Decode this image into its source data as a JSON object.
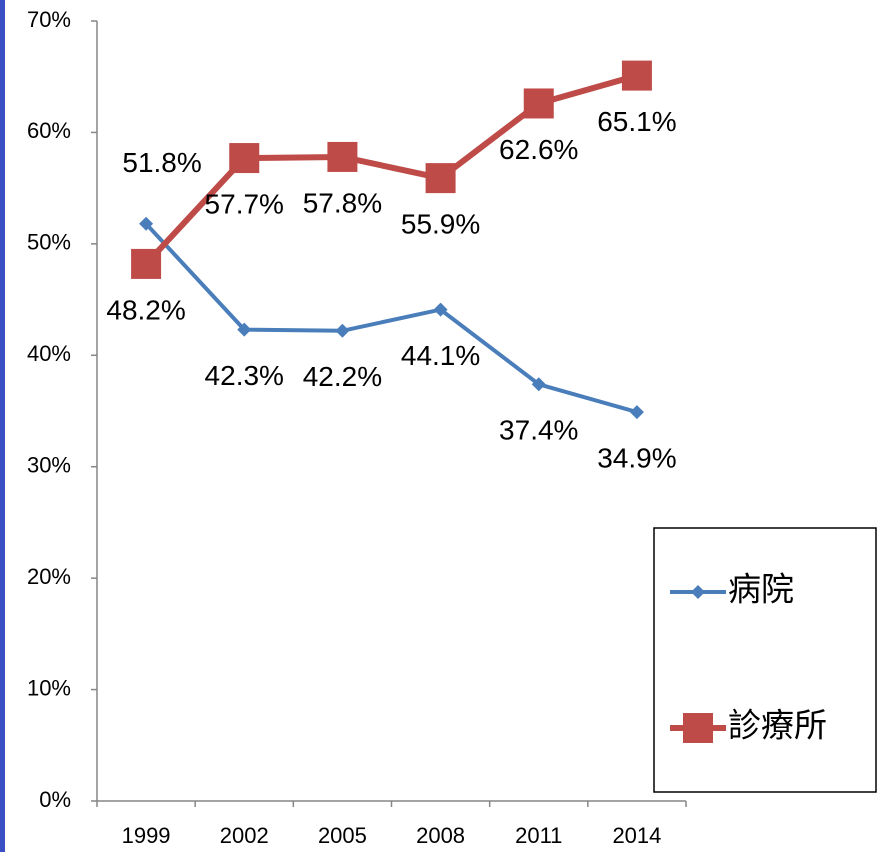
{
  "chart_data": {
    "type": "line",
    "categories": [
      "1999",
      "2002",
      "2005",
      "2008",
      "2011",
      "2014"
    ],
    "series": [
      {
        "name": "病院",
        "color": "#4a7ebb",
        "marker": "diamond",
        "values": [
          51.8,
          42.3,
          42.2,
          44.1,
          37.4,
          34.9
        ],
        "value_labels": [
          "51.8%",
          "42.3%",
          "42.2%",
          "44.1%",
          "37.4%",
          "34.9%"
        ]
      },
      {
        "name": "診療所",
        "color": "#be4b48",
        "marker": "square",
        "values": [
          48.2,
          57.7,
          57.8,
          55.9,
          62.6,
          65.1
        ],
        "value_labels": [
          "48.2%",
          "57.7%",
          "57.8%",
          "55.9%",
          "62.6%",
          "65.1%"
        ]
      }
    ],
    "ylim": [
      0,
      70
    ],
    "yticks": [
      {
        "value": 0,
        "label": "0%"
      },
      {
        "value": 10,
        "label": "10%"
      },
      {
        "value": 20,
        "label": "20%"
      },
      {
        "value": 30,
        "label": "30%"
      },
      {
        "value": 40,
        "label": "40%"
      },
      {
        "value": 50,
        "label": "50%"
      },
      {
        "value": 60,
        "label": "60%"
      },
      {
        "value": 70,
        "label": "70%"
      }
    ],
    "grid": false,
    "legend": "lower right"
  }
}
